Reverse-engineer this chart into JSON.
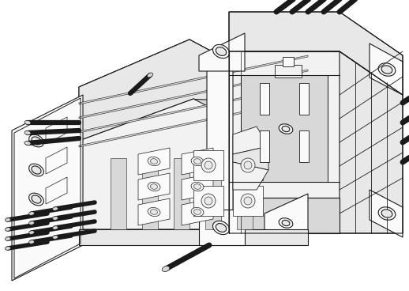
{
  "background_color": "#ffffff",
  "line_color": "#1a1a1a",
  "line_width": 0.8,
  "figsize": [
    5.18,
    3.68
  ],
  "dpi": 100,
  "fill_light": "#f2f2f2",
  "fill_mid": "#e8e8e8",
  "fill_dark": "#d8d8d8",
  "fill_white": "#fafafa"
}
